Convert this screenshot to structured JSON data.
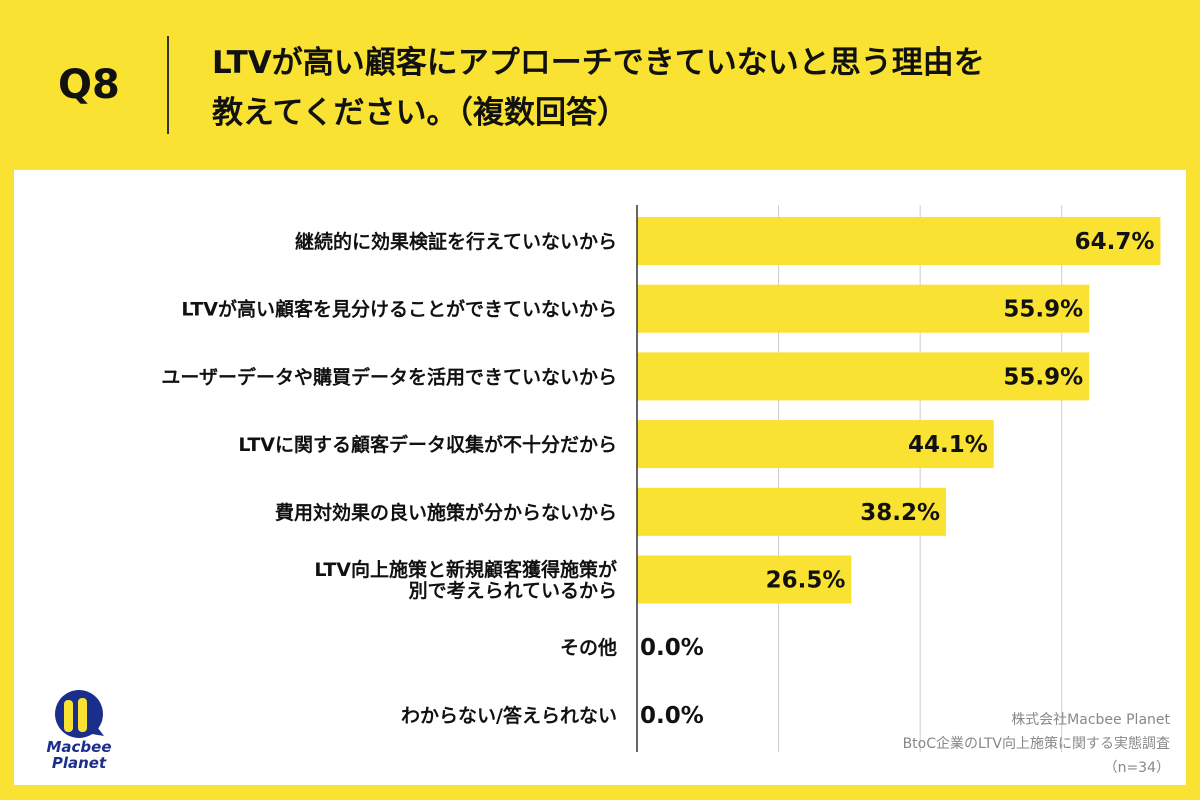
{
  "header": {
    "q_label": "Q8",
    "title_line1": "LTVが高い顧客にアプローチできていないと思う理由を",
    "title_line2": "教えてください。（複数回答）"
  },
  "chart_data": {
    "type": "bar",
    "orientation": "horizontal",
    "categories": [
      [
        "継続的に効果検証を行えていないから"
      ],
      [
        "LTVが高い顧客を見分けることができていないから"
      ],
      [
        "ユーザーデータや購買データを活用できていないから"
      ],
      [
        "LTVに関する顧客データ収集が不十分だから"
      ],
      [
        "費用対効果の良い施策が分からないから"
      ],
      [
        "LTV向上施策と新規顧客獲得施策が",
        "別で考えられているから"
      ],
      [
        "その他"
      ],
      [
        "わからない/答えられない"
      ]
    ],
    "values": [
      64.7,
      55.9,
      55.9,
      44.1,
      38.2,
      26.5,
      0.0,
      0.0
    ],
    "data_labels": [
      "64.7%",
      "55.9%",
      "55.9%",
      "44.1%",
      "38.2%",
      "26.5%",
      "0.0%",
      "0.0%"
    ],
    "xlim": [
      0,
      70
    ],
    "grid": true,
    "bar_color": "#F9E231"
  },
  "footer": {
    "company": "株式会社Macbee Planet",
    "survey": "BtoC企業のLTV向上施策に関する実態調査",
    "n": "（n=34）"
  },
  "logo": {
    "text1": "Macbee",
    "text2": "Planet",
    "colors": {
      "blue": "#1B2E8C",
      "yellow": "#F9E231"
    }
  }
}
